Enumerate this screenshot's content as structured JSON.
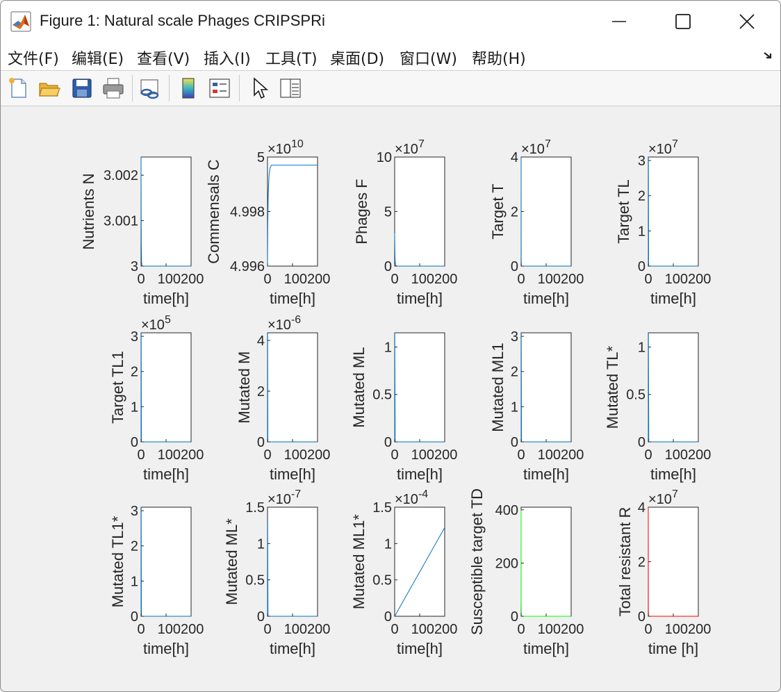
{
  "window": {
    "title": "Figure 1: Natural scale Phages CRIPSPRi"
  },
  "menubar": {
    "items": [
      "文件(F)",
      "编辑(E)",
      "查看(V)",
      "插入(I)",
      "工具(T)",
      "桌面(D)",
      "窗口(W)",
      "帮助(H)"
    ]
  },
  "toolbar": {
    "tools": [
      "new-figure-icon",
      "open-file-icon",
      "save-icon",
      "print-icon",
      "link-plot-icon",
      "insert-colorbar-icon",
      "insert-legend-icon",
      "edit-plot-pointer-icon",
      "property-inspector-icon"
    ]
  },
  "colors": {
    "blue": "#0072bd",
    "green": "#00ff00",
    "red": "#ff0000"
  },
  "chart_data": [
    {
      "type": "line",
      "ylabel": "Nutrients N",
      "xlabel": "time[h]",
      "exponent": "",
      "x_ticks": [
        "0",
        "100",
        "200"
      ],
      "y_ticks": [
        {
          "v": 3,
          "t": "3"
        },
        {
          "v": 3.001,
          "t": "3.001"
        },
        {
          "v": 3.002,
          "t": "3.002"
        }
      ],
      "ylim": [
        3,
        3.0024
      ],
      "xlim": [
        0,
        200
      ],
      "color": "#0072bd",
      "series": [
        {
          "x": [
            0,
            0.5,
            1,
            2,
            3,
            5,
            200
          ],
          "y": [
            3.0024,
            3.0012,
            3.0005,
            3.0001,
            3.00003,
            3.0,
            3.0
          ]
        }
      ]
    },
    {
      "type": "line",
      "ylabel": "Commensals C",
      "xlabel": "time[h]",
      "exponent": "10",
      "x_ticks": [
        "0",
        "100",
        "200"
      ],
      "y_ticks": [
        {
          "v": 4.996,
          "t": "4.996"
        },
        {
          "v": 4.998,
          "t": "4.998"
        },
        {
          "v": 5,
          "t": "5"
        }
      ],
      "ylim": [
        4.996,
        5.0
      ],
      "xlim": [
        0,
        200
      ],
      "color": "#0072bd",
      "series": [
        {
          "x": [
            0,
            1,
            3,
            6,
            10,
            15,
            25,
            200
          ],
          "y": [
            4.996,
            4.9975,
            4.9987,
            4.9993,
            4.9996,
            4.9997,
            4.9997,
            4.9997
          ]
        }
      ]
    },
    {
      "type": "line",
      "ylabel": "Phages F",
      "xlabel": "time[h]",
      "exponent": "7",
      "x_ticks": [
        "0",
        "100",
        "200"
      ],
      "y_ticks": [
        {
          "v": 0,
          "t": "0"
        },
        {
          "v": 5,
          "t": "5"
        },
        {
          "v": 10,
          "t": "10"
        }
      ],
      "ylim": [
        0,
        10
      ],
      "xlim": [
        0,
        200
      ],
      "color": "#0072bd",
      "series": [
        {
          "x": [
            0,
            1,
            2,
            4,
            8,
            200
          ],
          "y": [
            3,
            1.2,
            0.4,
            0.08,
            0,
            0
          ]
        }
      ]
    },
    {
      "type": "line",
      "ylabel": "Target T",
      "xlabel": "time[h]",
      "exponent": "7",
      "x_ticks": [
        "0",
        "100",
        "200"
      ],
      "y_ticks": [
        {
          "v": 0,
          "t": "0"
        },
        {
          "v": 2,
          "t": "2"
        },
        {
          "v": 4,
          "t": "4"
        }
      ],
      "ylim": [
        0,
        4
      ],
      "xlim": [
        0,
        200
      ],
      "color": "#0072bd",
      "series": [
        {
          "x": [
            0,
            0.3,
            1,
            200
          ],
          "y": [
            4,
            0.3,
            0,
            0
          ]
        }
      ]
    },
    {
      "type": "line",
      "ylabel": "Target TL",
      "xlabel": "time[h]",
      "exponent": "7",
      "x_ticks": [
        "0",
        "100",
        "200"
      ],
      "y_ticks": [
        {
          "v": 0,
          "t": "0"
        },
        {
          "v": 1,
          "t": "1"
        },
        {
          "v": 2,
          "t": "2"
        },
        {
          "v": 3,
          "t": "3"
        }
      ],
      "ylim": [
        0,
        3.1
      ],
      "xlim": [
        0,
        200
      ],
      "color": "#0072bd",
      "series": [
        {
          "x": [
            0,
            0.5,
            1.5,
            200
          ],
          "y": [
            0,
            3.1,
            0,
            0
          ]
        }
      ]
    },
    {
      "type": "line",
      "ylabel": "Target TL1",
      "xlabel": "time[h]",
      "exponent": "5",
      "x_ticks": [
        "0",
        "100",
        "200"
      ],
      "y_ticks": [
        {
          "v": 0,
          "t": "0"
        },
        {
          "v": 1,
          "t": "1"
        },
        {
          "v": 2,
          "t": "2"
        },
        {
          "v": 3,
          "t": "3"
        }
      ],
      "ylim": [
        0,
        3.1
      ],
      "xlim": [
        0,
        200
      ],
      "color": "#0072bd",
      "series": [
        {
          "x": [
            0,
            0.5,
            1.5,
            200
          ],
          "y": [
            0,
            3.1,
            0,
            0
          ]
        }
      ]
    },
    {
      "type": "line",
      "ylabel": "Mutated M",
      "xlabel": "time[h]",
      "exponent": "-6",
      "x_ticks": [
        "0",
        "100",
        "200"
      ],
      "y_ticks": [
        {
          "v": 0,
          "t": "0"
        },
        {
          "v": 2,
          "t": "2"
        },
        {
          "v": 4,
          "t": "4"
        }
      ],
      "ylim": [
        0,
        4.3
      ],
      "xlim": [
        0,
        200
      ],
      "color": "#0072bd",
      "series": [
        {
          "x": [
            0,
            0.5,
            1.5,
            200
          ],
          "y": [
            0,
            4.3,
            0,
            0
          ]
        }
      ]
    },
    {
      "type": "line",
      "ylabel": "Mutated ML",
      "xlabel": "time[h]",
      "exponent": "",
      "x_ticks": [
        "0",
        "100",
        "200"
      ],
      "y_ticks": [
        {
          "v": 0,
          "t": "0"
        },
        {
          "v": 0.5,
          "t": "0.5"
        },
        {
          "v": 1,
          "t": "1"
        }
      ],
      "ylim": [
        0,
        1.15
      ],
      "xlim": [
        0,
        200
      ],
      "color": "#0072bd",
      "series": [
        {
          "x": [
            0,
            0.5,
            2,
            200
          ],
          "y": [
            0,
            1.15,
            0,
            0
          ]
        }
      ]
    },
    {
      "type": "line",
      "ylabel": "Mutated ML1",
      "xlabel": "time[h]",
      "exponent": "",
      "x_ticks": [
        "0",
        "100",
        "200"
      ],
      "y_ticks": [
        {
          "v": 0,
          "t": "0"
        },
        {
          "v": 1,
          "t": "1"
        },
        {
          "v": 2,
          "t": "2"
        },
        {
          "v": 3,
          "t": "3"
        }
      ],
      "ylim": [
        0,
        3.1
      ],
      "xlim": [
        0,
        200
      ],
      "color": "#0072bd",
      "series": [
        {
          "x": [
            0,
            0.5,
            1.5,
            200
          ],
          "y": [
            0,
            3.1,
            0,
            0
          ]
        }
      ]
    },
    {
      "type": "line",
      "ylabel": "Mutated TL*",
      "xlabel": "time[h]",
      "exponent": "",
      "x_ticks": [
        "0",
        "100",
        "200"
      ],
      "y_ticks": [
        {
          "v": 0,
          "t": "0"
        },
        {
          "v": 0.5,
          "t": "0.5"
        },
        {
          "v": 1,
          "t": "1"
        }
      ],
      "ylim": [
        0,
        1.15
      ],
      "xlim": [
        0,
        200
      ],
      "color": "#0072bd",
      "series": [
        {
          "x": [
            0,
            0.5,
            2,
            200
          ],
          "y": [
            0,
            1.15,
            0,
            0
          ]
        }
      ]
    },
    {
      "type": "line",
      "ylabel": "Mutated TL1*",
      "xlabel": "time[h]",
      "exponent": "",
      "x_ticks": [
        "0",
        "100",
        "200"
      ],
      "y_ticks": [
        {
          "v": 0,
          "t": "0"
        },
        {
          "v": 1,
          "t": "1"
        },
        {
          "v": 2,
          "t": "2"
        },
        {
          "v": 3,
          "t": "3"
        }
      ],
      "ylim": [
        0,
        3.1
      ],
      "xlim": [
        0,
        200
      ],
      "color": "#0072bd",
      "series": [
        {
          "x": [
            0,
            0.5,
            1.5,
            200
          ],
          "y": [
            0,
            3.1,
            0,
            0
          ]
        }
      ]
    },
    {
      "type": "line",
      "ylabel": "Mutated ML*",
      "xlabel": "time[h]",
      "exponent": "-7",
      "x_ticks": [
        "0",
        "100",
        "200"
      ],
      "y_ticks": [
        {
          "v": 0,
          "t": "0"
        },
        {
          "v": 0.5,
          "t": "0.5"
        },
        {
          "v": 1,
          "t": "1"
        },
        {
          "v": 1.5,
          "t": "1.5"
        }
      ],
      "ylim": [
        0,
        1.5
      ],
      "xlim": [
        0,
        200
      ],
      "color": "#0072bd",
      "series": [
        {
          "x": [
            0,
            0.5,
            2,
            200
          ],
          "y": [
            0,
            1.3,
            0,
            0
          ]
        }
      ]
    },
    {
      "type": "line",
      "ylabel": "Mutated ML1*",
      "xlabel": "time[h]",
      "exponent": "-4",
      "x_ticks": [
        "0",
        "100",
        "200"
      ],
      "y_ticks": [
        {
          "v": 0,
          "t": "0"
        },
        {
          "v": 0.5,
          "t": "0.5"
        },
        {
          "v": 1,
          "t": "1"
        },
        {
          "v": 1.5,
          "t": "1.5"
        }
      ],
      "ylim": [
        0,
        1.5
      ],
      "xlim": [
        0,
        200
      ],
      "color": "#0072bd",
      "series": [
        {
          "x": [
            0,
            200
          ],
          "y": [
            0,
            1.22
          ]
        }
      ]
    },
    {
      "type": "line",
      "ylabel": "Susceptible target TD",
      "xlabel": "time[h]",
      "exponent": "",
      "x_ticks": [
        "0",
        "100",
        "200"
      ],
      "y_ticks": [
        {
          "v": 0,
          "t": "0"
        },
        {
          "v": 200,
          "t": "200"
        },
        {
          "v": 400,
          "t": "400"
        }
      ],
      "ylim": [
        0,
        410
      ],
      "xlim": [
        0,
        200
      ],
      "color": "#00ff00",
      "series": [
        {
          "x": [
            0,
            0.2,
            1,
            200
          ],
          "y": [
            400,
            50,
            0,
            0
          ]
        }
      ]
    },
    {
      "type": "line",
      "ylabel": "Total resistant R",
      "xlabel": "time [h]",
      "exponent": "7",
      "x_ticks": [
        "0",
        "100",
        "200"
      ],
      "y_ticks": [
        {
          "v": 0,
          "t": "0"
        },
        {
          "v": 2,
          "t": "2"
        },
        {
          "v": 4,
          "t": "4"
        }
      ],
      "ylim": [
        0,
        4
      ],
      "xlim": [
        0,
        200
      ],
      "color": "#ff0000",
      "series": [
        {
          "x": [
            0,
            0.3,
            1,
            200
          ],
          "y": [
            4,
            0.3,
            0,
            0
          ]
        }
      ]
    }
  ]
}
